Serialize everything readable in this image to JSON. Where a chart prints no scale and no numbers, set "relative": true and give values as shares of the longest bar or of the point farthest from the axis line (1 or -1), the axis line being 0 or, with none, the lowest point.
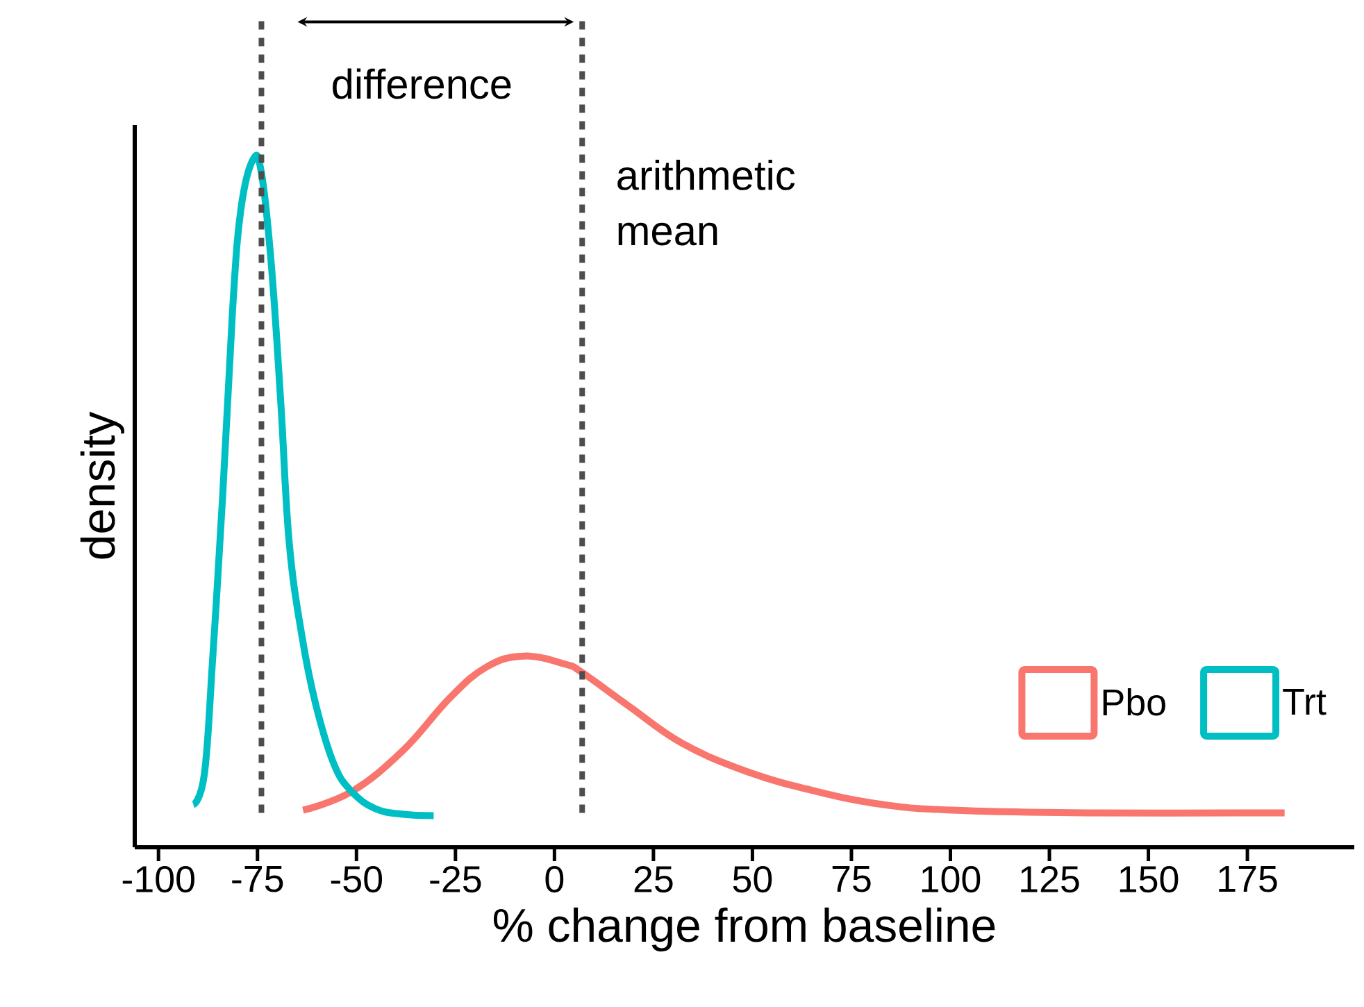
{
  "chart_data": {
    "type": "line",
    "relative": true,
    "xlabel": "% change from baseline",
    "ylabel": "density",
    "xlim": [
      -106,
      202
    ],
    "xticks": [
      -100,
      -75,
      -50,
      -25,
      0,
      25,
      50,
      75,
      100,
      125,
      150,
      175
    ],
    "series": [
      {
        "name": "Pbo",
        "color": "#f8766d",
        "x": [
          -63.5,
          -51.2,
          -38.2,
          -26.6,
          -17.2,
          -7.7,
          2.8,
          7.0,
          18.6,
          32.3,
          49.1,
          66.3,
          83.1,
          100.3,
          134.3,
          184.4
        ],
        "values": [
          0.054,
          0.081,
          0.141,
          0.216,
          0.262,
          0.278,
          0.266,
          0.254,
          0.206,
          0.151,
          0.109,
          0.081,
          0.062,
          0.054,
          0.05,
          0.05
        ]
      },
      {
        "name": "Trt",
        "color": "#00bfc4",
        "x": [
          -91.2,
          -88.4,
          -86.3,
          -83.8,
          -81.3,
          -79.2,
          -76.1,
          -74.0,
          -71.5,
          -69.1,
          -67.0,
          -63.8,
          -60.3,
          -55.7,
          -51.2,
          -45.2,
          -38.2,
          -30.5
        ],
        "values": [
          0.062,
          0.107,
          0.276,
          0.51,
          0.78,
          0.927,
          1.0,
          0.98,
          0.847,
          0.645,
          0.444,
          0.308,
          0.208,
          0.121,
          0.081,
          0.056,
          0.048,
          0.046
        ]
      }
    ],
    "ref_lines": [
      {
        "axis": "x",
        "value": -74,
        "label": null,
        "color": "#4d4d4d",
        "line_style": "dotted"
      },
      {
        "axis": "x",
        "value": 7,
        "label": "arithmetic mean",
        "color": "#4d4d4d",
        "line_style": "dotted"
      }
    ],
    "annotations": [
      "difference"
    ],
    "legend": "bottom right",
    "marker": "none",
    "line_style": "solid",
    "grid": false
  }
}
